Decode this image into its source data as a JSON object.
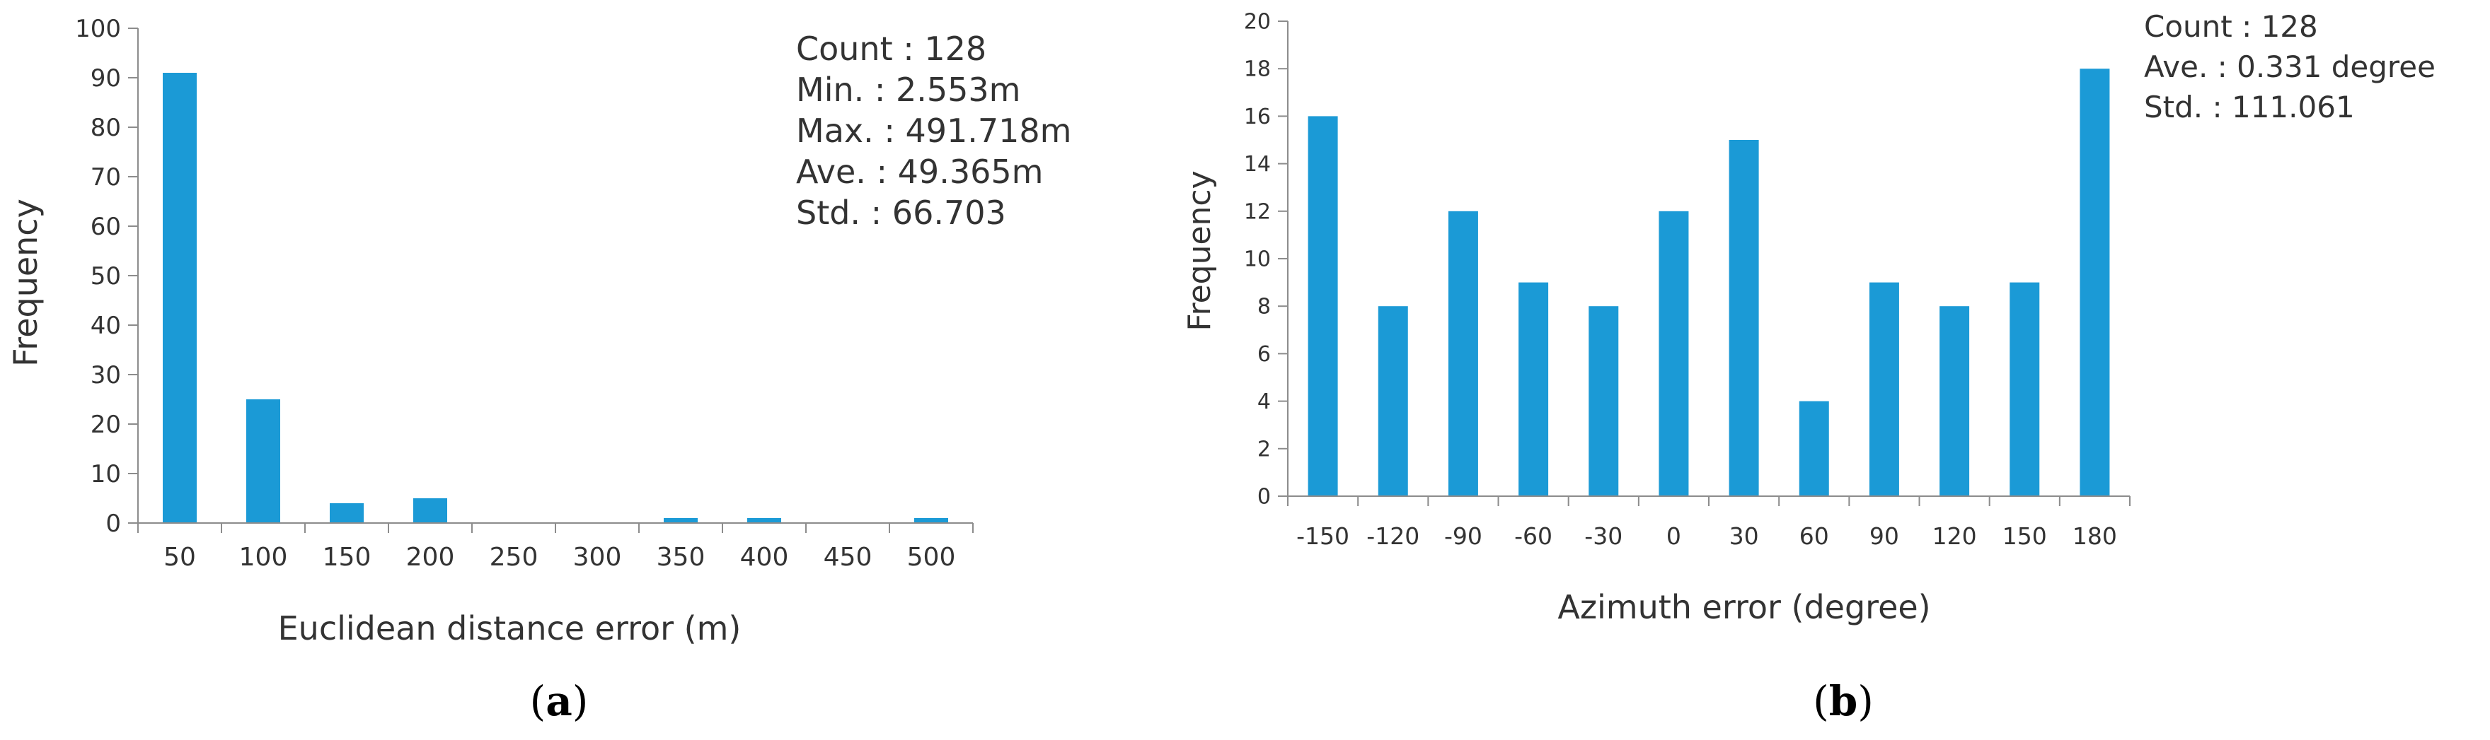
{
  "colors": {
    "bar": "#1b9ad6",
    "axis": "#8c8c8c",
    "text": "#333333"
  },
  "chart_data": [
    {
      "type": "bar",
      "panel_label": "(a)",
      "panel_letter": "a",
      "xlabel": "Euclidean distance error (m)",
      "ylabel": "Frequency",
      "ylim": [
        0,
        100
      ],
      "yticks": [
        0,
        10,
        20,
        30,
        40,
        50,
        60,
        70,
        80,
        90,
        100
      ],
      "categories": [
        "50",
        "100",
        "150",
        "200",
        "250",
        "300",
        "350",
        "400",
        "450",
        "500"
      ],
      "values": [
        91,
        25,
        4,
        5,
        0,
        0,
        1,
        1,
        0,
        1
      ],
      "stats": [
        "Count : 128",
        "Min. : 2.553m",
        "Max. : 491.718m",
        "Ave. : 49.365m",
        "Std. : 66.703"
      ]
    },
    {
      "type": "bar",
      "panel_label": "(b)",
      "panel_letter": "b",
      "xlabel": "Azimuth error (degree)",
      "ylabel": "Frequency",
      "ylim": [
        0,
        20
      ],
      "yticks": [
        0,
        2,
        4,
        6,
        8,
        10,
        12,
        14,
        16,
        18,
        20
      ],
      "categories": [
        "-150",
        "-120",
        "-90",
        "-60",
        "-30",
        "0",
        "30",
        "60",
        "90",
        "120",
        "150",
        "180"
      ],
      "values": [
        16,
        8,
        12,
        9,
        8,
        12,
        15,
        4,
        9,
        8,
        9,
        18
      ],
      "stats": [
        "Count : 128",
        "Ave. : 0.331 degree",
        "Std. : 111.061"
      ]
    }
  ]
}
